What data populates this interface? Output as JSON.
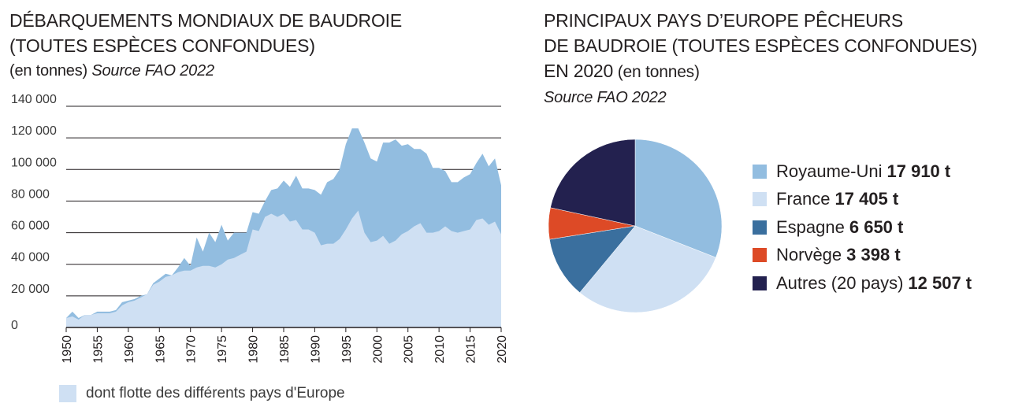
{
  "left_title": {
    "line1": "DÉBARQUEMENTS MONDIAUX DE BAUDROIE",
    "line2": "(TOUTES ESPÈCES CONFONDUES)",
    "line3_normal": "(en tonnes) ",
    "line3_italic": "Source FAO 2022"
  },
  "right_title": {
    "line1": "PRINCIPAUX PAYS D’EUROPE PÊCHEURS",
    "line2": "DE BAUDROIE (TOUTES ESPÈCES CONFONDUES)",
    "line3_caps": "EN 2020",
    "line3_normal": " (en tonnes)",
    "line4_italic": "Source FAO 2022"
  },
  "colors": {
    "world": "#92bde0",
    "europe": "#cfe0f3",
    "grid": "#231f20",
    "pie": [
      "#92bde0",
      "#cfe0f3",
      "#3a6f9e",
      "#dd4a26",
      "#23214f"
    ]
  },
  "chart_data": [
    {
      "type": "area",
      "title": "DÉBARQUEMENTS MONDIAUX DE BAUDROIE (TOUTES ESPÈCES CONFONDUES)",
      "ylim": [
        0,
        140000
      ],
      "xlim": [
        1950,
        2020
      ],
      "yticks": [
        0,
        20000,
        40000,
        60000,
        80000,
        100000,
        120000,
        140000
      ],
      "ytick_labels": [
        "0",
        "20 000",
        "40 000",
        "60 000",
        "80 000",
        "100 000",
        "120 000",
        "140 000"
      ],
      "xticks": [
        1950,
        1955,
        1960,
        1965,
        1970,
        1975,
        1980,
        1985,
        1990,
        1995,
        2000,
        2005,
        2010,
        2015,
        2020
      ],
      "xtick_labels": [
        "1950",
        "1955",
        "1960",
        "1965",
        "1970",
        "1975",
        "1980",
        "1985",
        "1990",
        "1995",
        "2000",
        "2005",
        "2010",
        "2015",
        "2020"
      ],
      "grid": true,
      "x": [
        1950,
        1951,
        1952,
        1953,
        1954,
        1955,
        1956,
        1957,
        1958,
        1959,
        1960,
        1961,
        1962,
        1963,
        1964,
        1965,
        1966,
        1967,
        1968,
        1969,
        1970,
        1971,
        1972,
        1973,
        1974,
        1975,
        1976,
        1977,
        1978,
        1979,
        1980,
        1981,
        1982,
        1983,
        1984,
        1985,
        1986,
        1987,
        1988,
        1989,
        1990,
        1991,
        1992,
        1993,
        1994,
        1995,
        1996,
        1997,
        1998,
        1999,
        2000,
        2001,
        2002,
        2003,
        2004,
        2005,
        2006,
        2007,
        2008,
        2009,
        2010,
        2011,
        2012,
        2013,
        2014,
        2015,
        2016,
        2017,
        2018,
        2019,
        2020
      ],
      "series": [
        {
          "values": [
            6000,
            10000,
            6000,
            8000,
            8000,
            10000,
            10000,
            10000,
            11000,
            16000,
            17000,
            18000,
            20000,
            21000,
            28000,
            31000,
            34000,
            33000,
            38000,
            44000,
            39000,
            57000,
            48000,
            60000,
            54000,
            65000,
            55000,
            60000,
            60000,
            60000,
            73000,
            72000,
            80000,
            87000,
            88000,
            93000,
            89000,
            96000,
            88000,
            88000,
            87000,
            84000,
            92000,
            94000,
            100000,
            116000,
            126000,
            126000,
            117000,
            107000,
            105000,
            117000,
            117000,
            119000,
            115000,
            116000,
            113000,
            113000,
            110000,
            101000,
            101000,
            99000,
            92000,
            92000,
            95000,
            97000,
            104000,
            110000,
            102000,
            107000,
            90000
          ]
        },
        {
          "name": "dont flotte des différents pays d'Europe",
          "values": [
            6000,
            7000,
            5000,
            8000,
            8000,
            9000,
            9000,
            9000,
            10000,
            14000,
            16000,
            17000,
            19000,
            21000,
            27000,
            29000,
            32000,
            33000,
            35000,
            36000,
            36000,
            38000,
            39000,
            39000,
            38000,
            40000,
            43000,
            44000,
            46000,
            48000,
            62000,
            61000,
            70000,
            72000,
            70000,
            72000,
            67000,
            68000,
            62000,
            62000,
            60000,
            52000,
            53000,
            53000,
            56000,
            62000,
            69000,
            74000,
            60000,
            54000,
            55000,
            58000,
            53000,
            55000,
            59000,
            61000,
            64000,
            66000,
            60000,
            60000,
            61000,
            64000,
            61000,
            60000,
            61000,
            62000,
            68000,
            69000,
            65000,
            67000,
            59000
          ]
        }
      ]
    },
    {
      "type": "pie",
      "title": "PRINCIPAUX PAYS D’EUROPE PÊCHEURS DE BAUDROIE (TOUTES ESPÈCES CONFONDUES) EN 2020",
      "labels": [
        "Royaume-Uni",
        "France",
        "Espagne",
        "Norvège",
        "Autres (20 pays)"
      ],
      "values": [
        17910,
        17405,
        6650,
        3398,
        12507
      ],
      "value_labels": [
        "17 910 t",
        "17 405 t",
        "6 650 t",
        "3 398 t",
        "12 507 t"
      ]
    }
  ]
}
